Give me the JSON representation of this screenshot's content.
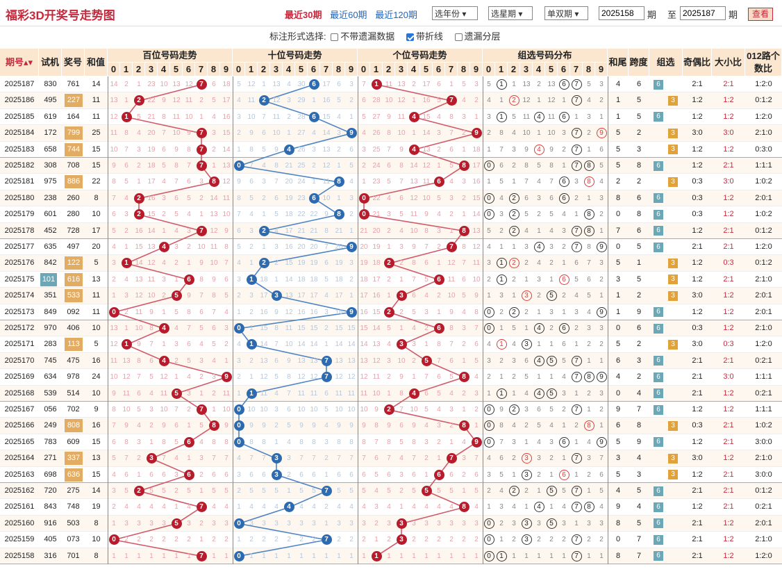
{
  "header": {
    "title": "福彩3D开奖号走势图",
    "nav": [
      "最近30期",
      "最近60期",
      "最近120期"
    ],
    "active_nav": 0,
    "year_select": "选年份",
    "week_select": "选星期",
    "oddeven_select": "单双期",
    "from_period": "2025158",
    "period_unit": "期",
    "to_label": "至",
    "to_period": "2025187",
    "view_button": "查看"
  },
  "options": {
    "label": "标注形式选择:",
    "items": [
      {
        "label": "不带遗漏数据",
        "checked": false
      },
      {
        "label": "带折线",
        "checked": true
      },
      {
        "label": "遗漏分层",
        "checked": false
      }
    ]
  },
  "columns": {
    "period": "期号",
    "trial": "试机",
    "prize": "奖号",
    "sum": "和值",
    "hundreds": "百位号码走势",
    "tens": "十位号码走势",
    "units": "个位号码走势",
    "group": "组选号码分布",
    "tail": "和尾",
    "span": "跨度",
    "groupsel": "组选",
    "oddeven": "奇偶比",
    "bigsmall": "大小比",
    "route": "012路个数比",
    "digits": [
      "0",
      "1",
      "2",
      "3",
      "4",
      "5",
      "6",
      "7",
      "8",
      "9"
    ]
  },
  "colors": {
    "red": "#b81c2c",
    "blue": "#2d6ab0",
    "header_bg": "#fbe7d0",
    "zu3": "#e2a23a",
    "zu6": "#6aa8b8"
  },
  "rows": [
    {
      "period": "2025187",
      "trial": "830",
      "prize": "761",
      "sum": "14",
      "tail": "4",
      "span": "6",
      "group": "6",
      "oe": "2:1",
      "bs": "2:1",
      "route": "1:2:0"
    },
    {
      "period": "2025186",
      "trial": "495",
      "prize": "227",
      "sum": "11",
      "tail": "1",
      "span": "5",
      "group": "3",
      "oe": "1:2",
      "bs": "1:2",
      "route": "0:1:2"
    },
    {
      "period": "2025185",
      "trial": "619",
      "prize": "164",
      "sum": "11",
      "tail": "1",
      "span": "5",
      "group": "6",
      "oe": "1:2",
      "bs": "1:2",
      "route": "1:2:0"
    },
    {
      "period": "2025184",
      "trial": "172",
      "prize": "799",
      "sum": "25",
      "tail": "5",
      "span": "2",
      "group": "3",
      "oe": "3:0",
      "bs": "3:0",
      "route": "2:1:0"
    },
    {
      "period": "2025183",
      "trial": "658",
      "prize": "744",
      "sum": "15",
      "tail": "5",
      "span": "3",
      "group": "3",
      "oe": "1:2",
      "bs": "1:2",
      "route": "0:3:0"
    },
    {
      "period": "2025182",
      "trial": "308",
      "prize": "708",
      "sum": "15",
      "tail": "5",
      "span": "8",
      "group": "6",
      "oe": "1:2",
      "bs": "2:1",
      "route": "1:1:1"
    },
    {
      "period": "2025181",
      "trial": "975",
      "prize": "886",
      "sum": "22",
      "tail": "2",
      "span": "2",
      "group": "3",
      "oe": "0:3",
      "bs": "3:0",
      "route": "1:0:2"
    },
    {
      "period": "2025180",
      "trial": "238",
      "prize": "260",
      "sum": "8",
      "tail": "8",
      "span": "6",
      "group": "6",
      "oe": "0:3",
      "bs": "1:2",
      "route": "2:0:1"
    },
    {
      "period": "2025179",
      "trial": "601",
      "prize": "280",
      "tail": "0",
      "sum": "10",
      "span": "8",
      "group": "6",
      "oe": "0:3",
      "bs": "1:2",
      "route": "1:0:2"
    },
    {
      "period": "2025178",
      "trial": "452",
      "prize": "728",
      "sum": "17",
      "tail": "7",
      "span": "6",
      "group": "6",
      "oe": "1:2",
      "bs": "2:1",
      "route": "0:1:2"
    },
    {
      "period": "2025177",
      "trial": "635",
      "prize": "497",
      "sum": "20",
      "tail": "0",
      "span": "5",
      "group": "6",
      "oe": "2:1",
      "bs": "2:1",
      "route": "1:2:0"
    },
    {
      "period": "2025176",
      "trial": "842",
      "prize": "122",
      "sum": "5",
      "tail": "5",
      "span": "1",
      "group": "3",
      "oe": "1:2",
      "bs": "0:3",
      "route": "0:1:2"
    },
    {
      "period": "2025175",
      "trial": "101",
      "prize": "616",
      "sum": "13",
      "tail": "3",
      "span": "5",
      "group": "3",
      "oe": "1:2",
      "bs": "2:1",
      "route": "2:1:0"
    },
    {
      "period": "2025174",
      "trial": "351",
      "prize": "533",
      "sum": "11",
      "tail": "1",
      "span": "2",
      "group": "3",
      "oe": "3:0",
      "bs": "1:2",
      "route": "2:0:1"
    },
    {
      "period": "2025173",
      "trial": "849",
      "prize": "092",
      "sum": "11",
      "tail": "1",
      "span": "9",
      "group": "6",
      "oe": "1:2",
      "bs": "1:2",
      "route": "2:0:1"
    },
    {
      "period": "2025172",
      "trial": "970",
      "prize": "406",
      "sum": "10",
      "tail": "0",
      "span": "6",
      "group": "6",
      "oe": "0:3",
      "bs": "1:2",
      "route": "2:1:0"
    },
    {
      "period": "2025171",
      "trial": "283",
      "prize": "113",
      "sum": "5",
      "tail": "5",
      "span": "2",
      "group": "3",
      "oe": "3:0",
      "bs": "0:3",
      "route": "1:2:0"
    },
    {
      "period": "2025170",
      "trial": "745",
      "prize": "475",
      "sum": "16",
      "tail": "6",
      "span": "3",
      "group": "6",
      "oe": "2:1",
      "bs": "2:1",
      "route": "0:2:1"
    },
    {
      "period": "2025169",
      "trial": "634",
      "prize": "978",
      "sum": "24",
      "tail": "4",
      "span": "2",
      "group": "6",
      "oe": "2:1",
      "bs": "3:0",
      "route": "1:1:1"
    },
    {
      "period": "2025168",
      "trial": "539",
      "prize": "514",
      "sum": "10",
      "tail": "0",
      "span": "4",
      "group": "6",
      "oe": "2:1",
      "bs": "1:2",
      "route": "0:2:1"
    },
    {
      "period": "2025167",
      "trial": "056",
      "prize": "702",
      "sum": "9",
      "tail": "9",
      "span": "7",
      "group": "6",
      "oe": "1:2",
      "bs": "1:2",
      "route": "1:1:1"
    },
    {
      "period": "2025166",
      "trial": "249",
      "prize": "808",
      "sum": "16",
      "tail": "6",
      "span": "8",
      "group": "3",
      "oe": "0:3",
      "bs": "2:1",
      "route": "1:0:2"
    },
    {
      "period": "2025165",
      "trial": "783",
      "prize": "609",
      "sum": "15",
      "tail": "5",
      "span": "9",
      "group": "6",
      "oe": "1:2",
      "bs": "2:1",
      "route": "3:0:0"
    },
    {
      "period": "2025164",
      "trial": "271",
      "prize": "337",
      "sum": "13",
      "tail": "3",
      "span": "4",
      "group": "3",
      "oe": "3:0",
      "bs": "1:2",
      "route": "2:1:0"
    },
    {
      "period": "2025163",
      "trial": "698",
      "prize": "636",
      "sum": "15",
      "tail": "5",
      "span": "3",
      "group": "3",
      "oe": "1:2",
      "bs": "2:1",
      "route": "3:0:0"
    },
    {
      "period": "2025162",
      "trial": "720",
      "prize": "275",
      "sum": "14",
      "tail": "4",
      "span": "5",
      "group": "6",
      "oe": "2:1",
      "bs": "2:1",
      "route": "0:1:2"
    },
    {
      "period": "2025161",
      "trial": "843",
      "prize": "748",
      "sum": "19",
      "tail": "9",
      "span": "4",
      "group": "6",
      "oe": "1:2",
      "bs": "2:1",
      "route": "0:2:1"
    },
    {
      "period": "2025160",
      "trial": "916",
      "prize": "503",
      "sum": "8",
      "tail": "8",
      "span": "5",
      "group": "6",
      "oe": "2:1",
      "bs": "1:2",
      "route": "2:0:1"
    },
    {
      "period": "2025159",
      "trial": "405",
      "prize": "073",
      "sum": "10",
      "tail": "0",
      "span": "7",
      "group": "6",
      "oe": "2:1",
      "bs": "1:2",
      "route": "2:1:0"
    },
    {
      "period": "2025158",
      "trial": "316",
      "prize": "701",
      "sum": "8",
      "tail": "8",
      "span": "7",
      "group": "6",
      "oe": "2:1",
      "bs": "1:2",
      "route": "1:2:0"
    }
  ]
}
